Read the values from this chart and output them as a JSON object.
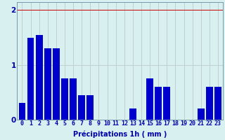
{
  "categories": [
    0,
    1,
    2,
    3,
    4,
    5,
    6,
    7,
    8,
    9,
    10,
    11,
    12,
    13,
    14,
    15,
    16,
    17,
    18,
    19,
    20,
    21,
    22,
    23
  ],
  "values": [
    0.3,
    1.5,
    1.55,
    1.3,
    1.3,
    0.75,
    0.75,
    0.45,
    0.45,
    0.0,
    0.0,
    0.0,
    0.0,
    0.2,
    0.0,
    0.75,
    0.6,
    0.6,
    0.0,
    0.0,
    0.0,
    0.2,
    0.6,
    0.6
  ],
  "bar_color": "#0000cc",
  "bg_color": "#d8f0f0",
  "hgrid_color": "#c0d0d0",
  "vgrid_color": "#c0d0d0",
  "top_line_color": "#cc0000",
  "axis_color": "#7799aa",
  "text_color": "#0000aa",
  "xlabel": "Précipitations 1h ( mm )",
  "ylim": [
    0,
    2.15
  ],
  "yticks": [
    0,
    1,
    2
  ],
  "xlabel_fontsize": 7,
  "tick_fontsize": 6.0,
  "bar_width": 0.8
}
